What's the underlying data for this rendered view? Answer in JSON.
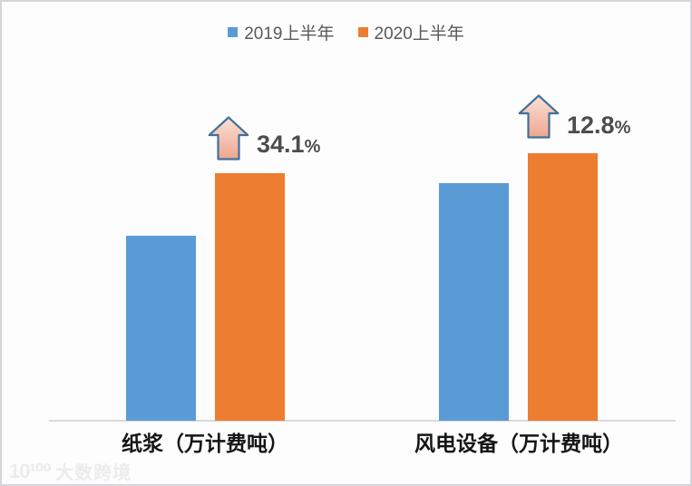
{
  "chart_data": {
    "type": "bar",
    "categories": [
      "纸浆（万计费吨）",
      "风电设备（万计费吨）"
    ],
    "series": [
      {
        "name": "2019上半年",
        "color": "#5B9BD5",
        "values": [
          100,
          128.4
        ]
      },
      {
        "name": "2020上半年",
        "color": "#ED7D31",
        "values": [
          134.1,
          144.8
        ]
      }
    ],
    "growth_labels": [
      {
        "value": "34.1",
        "unit": "%"
      },
      {
        "value": "12.8",
        "unit": "%"
      }
    ],
    "ylim": [
      0,
      185
    ],
    "y_axis_visible": false,
    "gridlines": false,
    "legend_position": "top",
    "arrow_style": {
      "outline_color": "#41719C",
      "fill_top": "#fbe0d7",
      "fill_bottom": "#efa68d"
    },
    "axis_line_color": "#d9d9d9"
  },
  "watermark": {
    "logo": "10¹⁰⁰",
    "text": "大数跨境"
  }
}
